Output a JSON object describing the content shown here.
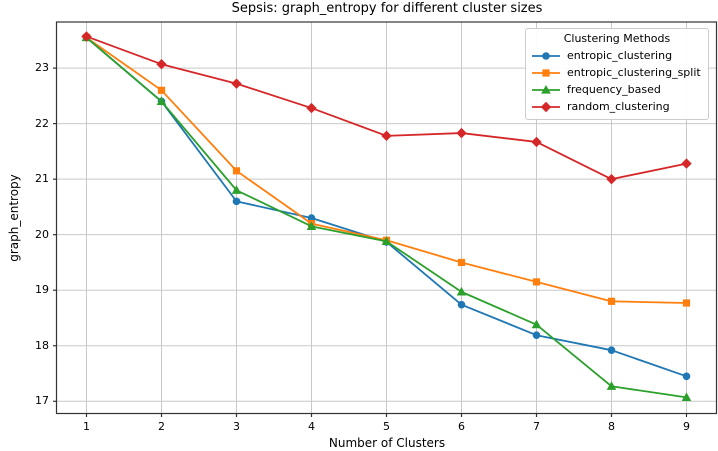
{
  "chart_data": {
    "type": "line",
    "title": "Sepsis: graph_entropy for different cluster sizes",
    "xlabel": "Number of Clusters",
    "ylabel": "graph_entropy",
    "x": [
      1,
      2,
      3,
      4,
      5,
      6,
      7,
      8,
      9
    ],
    "x_ticks": [
      1,
      2,
      3,
      4,
      5,
      6,
      7,
      8,
      9
    ],
    "y_ticks": [
      17,
      18,
      19,
      20,
      21,
      22,
      23
    ],
    "xlim": [
      0.6,
      9.4
    ],
    "ylim": [
      16.78,
      23.83
    ],
    "grid": true,
    "legend": {
      "title": "Clustering Methods",
      "position": "upper-right"
    },
    "colors": {
      "grid": "#c9c9c9",
      "axes": "#333333",
      "text": "#000000",
      "legend_border": "#cccccc",
      "background": "#ffffff"
    },
    "series": [
      {
        "name": "entropic_clustering",
        "color": "#1f77b4",
        "marker": "circle",
        "values": [
          23.55,
          22.4,
          20.6,
          20.3,
          19.87,
          18.74,
          18.19,
          17.92,
          17.45
        ]
      },
      {
        "name": "entropic_clustering_split",
        "color": "#ff7f0e",
        "marker": "square",
        "values": [
          23.55,
          22.6,
          21.15,
          20.2,
          19.9,
          19.5,
          19.15,
          18.8,
          18.77
        ]
      },
      {
        "name": "frequency_based",
        "color": "#2ca02c",
        "marker": "triangle",
        "values": [
          23.55,
          22.4,
          20.8,
          20.15,
          19.88,
          18.97,
          18.38,
          17.27,
          17.07
        ]
      },
      {
        "name": "random_clustering",
        "color": "#d62728",
        "marker": "diamond",
        "values": [
          23.57,
          23.07,
          22.72,
          22.28,
          21.78,
          21.83,
          21.67,
          21.0,
          21.28
        ]
      }
    ]
  }
}
